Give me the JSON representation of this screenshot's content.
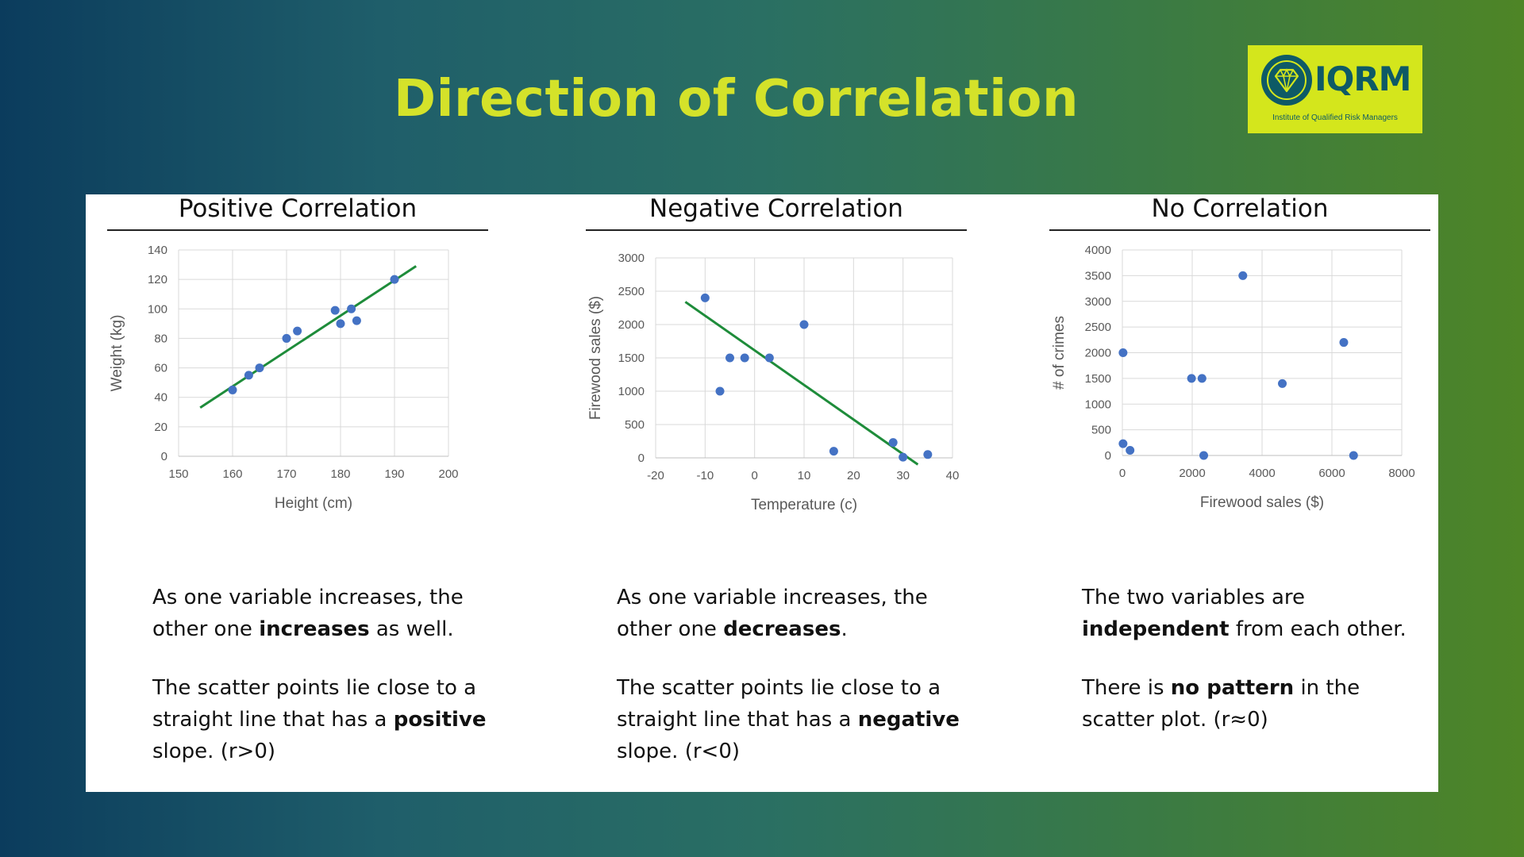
{
  "header": {
    "title": "Direction of Correlation"
  },
  "logo": {
    "name": "IQRM",
    "tagline": "Institute of Qualified Risk Managers",
    "color": "#0e5a66",
    "bg": "#d4e61c",
    "icon": "diamond-icon"
  },
  "columns": [
    {
      "title": "Positive Correlation",
      "desc": [
        [
          "As one variable increases, the other one ",
          {
            "b": "increases"
          },
          " as well."
        ],
        [
          "The scatter points lie close to a straight line that has a ",
          {
            "b": "positive"
          },
          " slope.  (r>0)"
        ]
      ]
    },
    {
      "title": "Negative Correlation",
      "desc": [
        [
          "As one variable increases, the other one ",
          {
            "b": "decreases"
          },
          "."
        ],
        [
          "The scatter points lie close to a straight line that has a ",
          {
            "b": "negative"
          },
          " slope. (r<0)"
        ]
      ]
    },
    {
      "title": "No Correlation",
      "desc": [
        [
          "The two variables are ",
          {
            "b": "independent"
          },
          " from each other."
        ],
        [
          "There is ",
          {
            "b": "no pattern"
          },
          " in the scatter plot. (r≈0)"
        ]
      ]
    }
  ],
  "chart_data": [
    {
      "type": "scatter",
      "xlabel": "Height (cm)",
      "ylabel": "Weight (kg)",
      "xlim": [
        150,
        200
      ],
      "ylim": [
        0,
        140
      ],
      "xticks": [
        150,
        160,
        170,
        180,
        190,
        200
      ],
      "yticks": [
        0,
        20,
        40,
        60,
        80,
        100,
        120,
        140
      ],
      "points": [
        [
          160,
          45
        ],
        [
          163,
          55
        ],
        [
          165,
          60
        ],
        [
          170,
          80
        ],
        [
          172,
          85
        ],
        [
          179,
          99
        ],
        [
          180,
          90
        ],
        [
          182,
          100
        ],
        [
          183,
          92
        ],
        [
          190,
          120
        ]
      ],
      "trendline": [
        [
          154,
          33
        ],
        [
          194,
          129
        ]
      ],
      "point_color": "#4472c4",
      "line_color": "#1e8c3a",
      "grid": true
    },
    {
      "type": "scatter",
      "xlabel": "Temperature (c)",
      "ylabel": "Firewood sales ($)",
      "xlim": [
        -20,
        40
      ],
      "ylim": [
        0,
        3000
      ],
      "xticks": [
        -20,
        -10,
        0,
        10,
        20,
        30,
        40
      ],
      "yticks": [
        0,
        500,
        1000,
        1500,
        2000,
        2500,
        3000
      ],
      "points": [
        [
          -10,
          2400
        ],
        [
          -7,
          1000
        ],
        [
          -5,
          1500
        ],
        [
          -2,
          1500
        ],
        [
          3,
          1500
        ],
        [
          10,
          2000
        ],
        [
          16,
          100
        ],
        [
          28,
          230
        ],
        [
          30,
          10
        ],
        [
          35,
          50
        ]
      ],
      "trendline": [
        [
          -14,
          2340
        ],
        [
          33,
          -100
        ]
      ],
      "point_color": "#4472c4",
      "line_color": "#1e8c3a",
      "grid": true
    },
    {
      "type": "scatter",
      "xlabel": "Firewood sales ($)",
      "ylabel": "# of crimes",
      "xlim": [
        0,
        8000
      ],
      "ylim": [
        0,
        4000
      ],
      "xticks": [
        0,
        2000,
        4000,
        6000,
        8000
      ],
      "yticks": [
        0,
        500,
        1000,
        1500,
        2000,
        2500,
        3000,
        3500,
        4000
      ],
      "points": [
        [
          20,
          2000
        ],
        [
          20,
          230
        ],
        [
          220,
          100
        ],
        [
          1980,
          1500
        ],
        [
          2280,
          1500
        ],
        [
          2330,
          0
        ],
        [
          3450,
          3500
        ],
        [
          4580,
          1400
        ],
        [
          6340,
          2200
        ],
        [
          6620,
          0
        ]
      ],
      "point_color": "#4472c4",
      "grid": true
    }
  ]
}
